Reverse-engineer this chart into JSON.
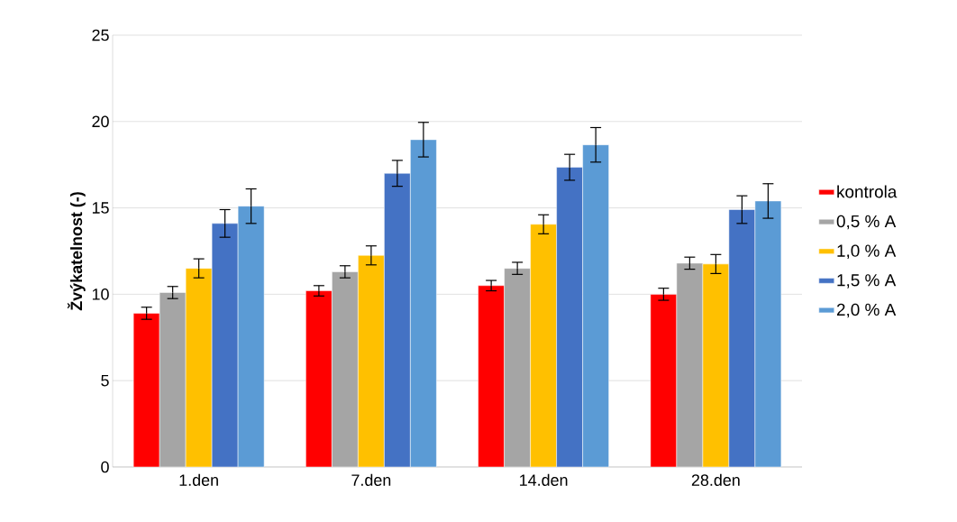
{
  "chart_data": {
    "type": "bar",
    "ylabel": "Žvýkatelnost (-)",
    "categories": [
      "1.den",
      "7.den",
      "14.den",
      "28.den"
    ],
    "series": [
      {
        "name": "kontrola",
        "color": "#ff0000",
        "values": [
          8.9,
          10.2,
          10.5,
          10.0
        ],
        "errors": [
          0.35,
          0.3,
          0.3,
          0.35
        ]
      },
      {
        "name": "0,5 % A",
        "color": "#a5a5a5",
        "values": [
          10.1,
          11.3,
          11.5,
          11.8
        ],
        "errors": [
          0.35,
          0.35,
          0.35,
          0.35
        ]
      },
      {
        "name": "1,0 % A",
        "color": "#ffc000",
        "values": [
          11.5,
          12.25,
          14.05,
          11.75
        ],
        "errors": [
          0.55,
          0.55,
          0.55,
          0.55
        ]
      },
      {
        "name": "1,5 % A",
        "color": "#4472c4",
        "values": [
          14.1,
          17.0,
          17.35,
          14.9
        ],
        "errors": [
          0.8,
          0.75,
          0.75,
          0.8
        ]
      },
      {
        "name": "2,0 % A",
        "color": "#5b9bd5",
        "values": [
          15.1,
          18.95,
          18.65,
          15.4
        ],
        "errors": [
          1.0,
          1.0,
          1.0,
          1.0
        ]
      }
    ],
    "ylim": [
      0,
      25
    ],
    "yticks": [
      0,
      5,
      10,
      15,
      20,
      25
    ],
    "grid": "y",
    "legend": "right"
  }
}
